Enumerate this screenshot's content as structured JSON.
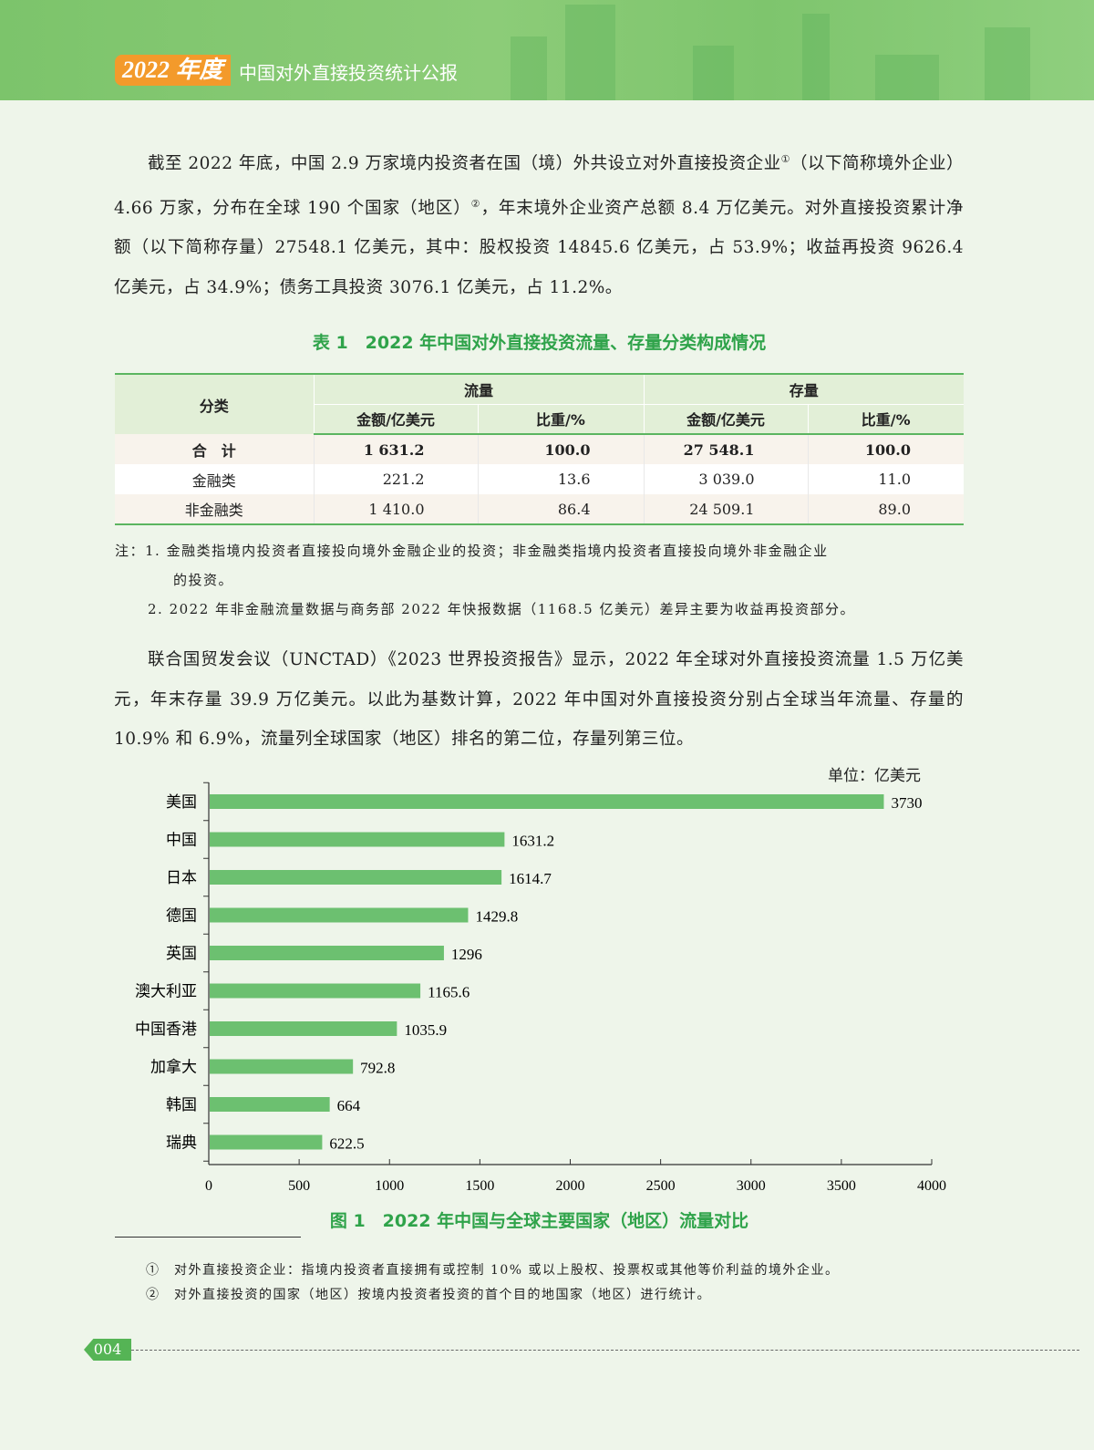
{
  "header": {
    "year": "2022 年度",
    "title": "中国对外直接投资统计公报"
  },
  "paragraph1": {
    "text_a": "截至 2022 年底，中国 2.9 万家境内投资者在国（境）外共设立对外直接投资企业",
    "fn1": "①",
    "text_b": "（以下简称境外企业）4.66 万家，分布在全球 190 个国家（地区）",
    "fn2": "②",
    "text_c": "，年末境外企业资产总额 8.4 万亿美元。对外直接投资累计净额（以下简称存量）27548.1 亿美元，其中：股权投资 14845.6 亿美元，占 53.9%；收益再投资 9626.4 亿美元，占 34.9%；债务工具投资 3076.1 亿美元，占 11.2%。"
  },
  "table": {
    "caption": "表 1　2022 年中国对外直接投资流量、存量分类构成情况",
    "col_category": "分类",
    "group_flow": "流量",
    "group_stock": "存量",
    "sub_amount": "金额/亿美元",
    "sub_share": "比重/%",
    "rows": [
      {
        "category": "合　计",
        "flow_amount": "1 631.2",
        "flow_share": "100.0",
        "stock_amount": "27 548.1",
        "stock_share": "100.0"
      },
      {
        "category": "金融类",
        "flow_amount": "221.2",
        "flow_share": "13.6",
        "stock_amount": "3 039.0",
        "stock_share": "11.0"
      },
      {
        "category": "非金融类",
        "flow_amount": "1 410.0",
        "flow_share": "86.4",
        "stock_amount": "24 509.1",
        "stock_share": "89.0"
      }
    ],
    "note1": "注：1. 金融类指境内投资者直接投向境外金融企业的投资；非金融类指境内投资者直接投向境外非金融企业",
    "note1_cont": "的投资。",
    "note2": "2. 2022 年非金融流量数据与商务部 2022 年快报数据（1168.5 亿美元）差异主要为收益再投资部分。"
  },
  "paragraph2": "联合国贸发会议（UNCTAD）《2023 世界投资报告》显示，2022 年全球对外直接投资流量 1.5 万亿美元，年末存量 39.9 万亿美元。以此为基数计算，2022 年中国对外直接投资分别占全球当年流量、存量的 10.9% 和 6.9%，流量列全球国家（地区）排名的第二位，存量列第三位。",
  "chart_data": {
    "type": "bar",
    "orientation": "horizontal",
    "title": "图 1　2022 年中国与全球主要国家（地区）流量对比",
    "unit": "单位：亿美元",
    "categories": [
      "美国",
      "中国",
      "日本",
      "德国",
      "英国",
      "澳大利亚",
      "中国香港",
      "加拿大",
      "韩国",
      "瑞典"
    ],
    "values": [
      3730,
      1631.2,
      1614.7,
      1429.8,
      1296,
      1165.6,
      1035.9,
      792.8,
      664,
      622.5
    ],
    "value_labels": [
      "3730",
      "1631.2",
      "1614.7",
      "1429.8",
      "1296",
      "1165.6",
      "1035.9",
      "792.8",
      "664",
      "622.5"
    ],
    "xlim": [
      0,
      4000
    ],
    "xticks": [
      "0",
      "500",
      "1000",
      "1500",
      "2000",
      "2500",
      "3000",
      "3500",
      "4000"
    ],
    "grid": false,
    "bar_color": "#6cc070"
  },
  "footnotes": [
    {
      "mark": "①",
      "text": "对外直接投资企业：指境内投资者直接拥有或控制 10% 或以上股权、投票权或其他等价利益的境外企业。"
    },
    {
      "mark": "②",
      "text": "对外直接投资的国家（地区）按境内投资者投资的首个目的地国家（地区）进行统计。"
    }
  ],
  "page_number": "004"
}
